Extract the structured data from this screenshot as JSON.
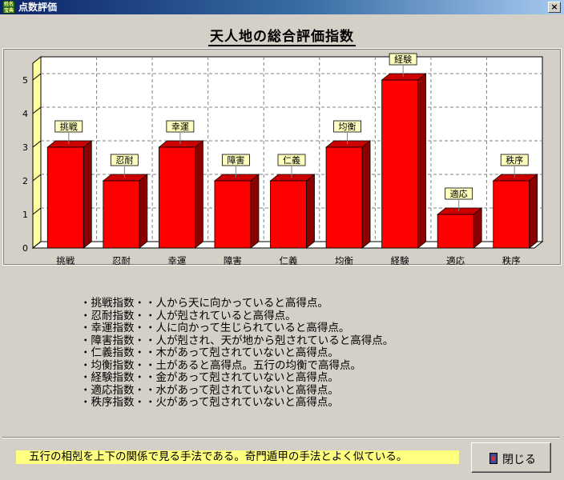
{
  "window": {
    "title": "点数評価",
    "app_icon_text": "姓名宝典",
    "close_glyph": "×"
  },
  "chart_data": {
    "type": "bar",
    "title": "天人地の総合評価指数",
    "categories": [
      "挑戦",
      "忍耐",
      "幸運",
      "障害",
      "仁義",
      "均衡",
      "経験",
      "適応",
      "秩序"
    ],
    "values": [
      3,
      2,
      3,
      2,
      2,
      3,
      5,
      1,
      2
    ],
    "data_labels": [
      "挑戦",
      "忍耐",
      "幸運",
      "障害",
      "仁義",
      "均衡",
      "経験",
      "適応",
      "秩序"
    ],
    "y_ticks": [
      "0",
      "1",
      "2",
      "3",
      "4",
      "5"
    ],
    "ylim": [
      0,
      5.5
    ],
    "grid": true,
    "colors": {
      "bar_front": "#ff0000",
      "bar_side": "#8b0000",
      "bar_top": "#cc0000",
      "label_bg": "#ffffc0",
      "wall": "#ffffa0"
    }
  },
  "descriptions": [
    "・挑戦指数・・人から天に向かっていると高得点。",
    "・忍耐指数・・人が剋されていると高得点。",
    "・幸運指数・・人に向かって生じられていると高得点。",
    "・障害指数・・人が剋され、天が地から剋されていると高得点。",
    "・仁義指数・・木があって剋されていないと高得点。",
    "・均衡指数・・土があると高得点。五行の均衡で高得点。",
    "・経験指数・・金があって剋されていないと高得点。",
    "・適応指数・・水があって剋されていないと高得点。",
    "・秩序指数・・火があって剋されていないと高得点。"
  ],
  "footer": {
    "note": "五行の相剋を上下の関係で見る手法である。奇門遁甲の手法とよく似ている。",
    "close_button": "閉じる"
  }
}
